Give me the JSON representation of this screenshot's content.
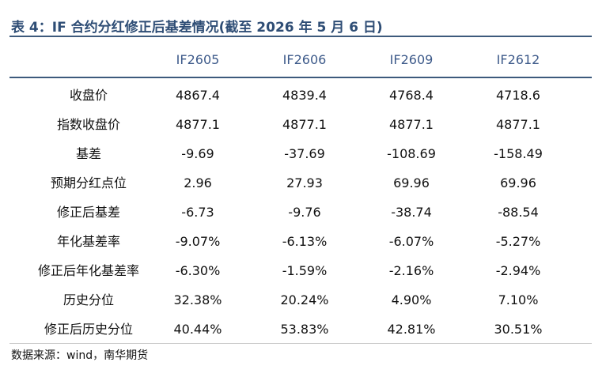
{
  "title": "表 4：IF 合约分红修正后基差情况(截至 2026 年 5 月 6 日)",
  "columns": [
    "",
    "IF2605",
    "IF2606",
    "IF2609",
    "IF2612"
  ],
  "rows": [
    {
      "label": "收盘价",
      "values": [
        "4867.4",
        "4839.4",
        "4768.4",
        "4718.6"
      ]
    },
    {
      "label": "指数收盘价",
      "values": [
        "4877.1",
        "4877.1",
        "4877.1",
        "4877.1"
      ]
    },
    {
      "label": "基差",
      "values": [
        "-9.69",
        "-37.69",
        "-108.69",
        "-158.49"
      ]
    },
    {
      "label": "预期分红点位",
      "values": [
        "2.96",
        "27.93",
        "69.96",
        "69.96"
      ]
    },
    {
      "label": "修正后基差",
      "values": [
        "-6.73",
        "-9.76",
        "-38.74",
        "-88.54"
      ]
    },
    {
      "label": "年化基差率",
      "values": [
        "-9.07%",
        "-6.13%",
        "-6.07%",
        "-5.27%"
      ]
    },
    {
      "label": "修正后年化基差率",
      "values": [
        "-6.30%",
        "-1.59%",
        "-2.16%",
        "-2.94%"
      ]
    },
    {
      "label": "历史分位",
      "values": [
        "32.38%",
        "20.24%",
        "4.90%",
        "7.10%"
      ]
    },
    {
      "label": "修正后历史分位",
      "values": [
        "40.44%",
        "53.83%",
        "42.81%",
        "30.51%"
      ]
    }
  ],
  "source": "数据来源：wind，南华期货",
  "colors": {
    "title": "#2e4d75",
    "rule": "#3d5a7c",
    "header_text": "#3d5a8a"
  }
}
